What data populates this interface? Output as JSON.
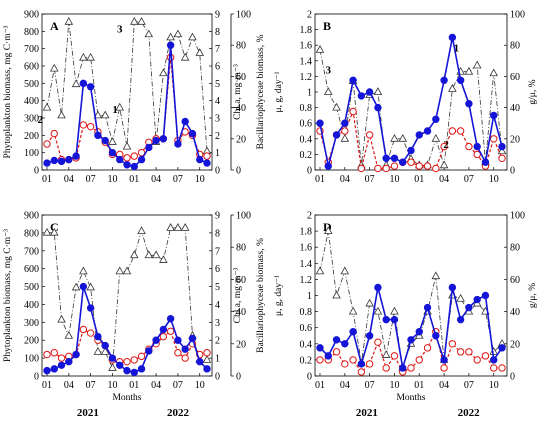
{
  "chart_data": [
    {
      "panel": "A",
      "type": "line",
      "x": [
        "01",
        "02",
        "03",
        "04",
        "05",
        "06",
        "07",
        "08",
        "09",
        "10",
        "11",
        "12",
        "01",
        "02",
        "03",
        "04",
        "05",
        "06",
        "07",
        "08",
        "09",
        "10",
        "11"
      ],
      "xticks": [
        "01",
        "04",
        "07",
        "10",
        "01",
        "04",
        "07",
        "10"
      ],
      "ylabel_left": "Phytoplankton biomass, mg C·m⁻³",
      "ylabel_right1": "Chl a, mg·m⁻³",
      "ylabel_right2": "Bacillariophyceae biomass, %",
      "ylim_left": [
        0,
        900
      ],
      "yticks_left": [
        "0",
        "100",
        "200",
        "300",
        "400",
        "500",
        "600",
        "700",
        "800",
        "900"
      ],
      "ylim_right1": [
        0,
        9
      ],
      "yticks_right1": [
        "0",
        "1",
        "2",
        "3",
        "4",
        "5",
        "6",
        "7",
        "8",
        "9"
      ],
      "ylim_right2": [
        0,
        100
      ],
      "yticks_right2": [
        "0",
        "20",
        "40",
        "60",
        "80",
        "100"
      ],
      "series_labels": [
        "1",
        "2",
        "3"
      ],
      "series": [
        {
          "label": "1",
          "axis": "left",
          "values": [
            40,
            55,
            50,
            60,
            80,
            500,
            480,
            200,
            170,
            100,
            60,
            30,
            20,
            60,
            130,
            170,
            180,
            720,
            150,
            280,
            210,
            60,
            40
          ]
        },
        {
          "label": "2",
          "axis": "right1",
          "values": [
            1.5,
            2.1,
            0.6,
            0.6,
            0.7,
            2.6,
            2.5,
            2.2,
            1.6,
            0.9,
            0.9,
            0.7,
            0.8,
            1.0,
            1.6,
            1.8,
            1.8,
            6.5,
            1.7,
            2.2,
            2.0,
            0.9,
            0.8
          ]
        },
        {
          "label": "3",
          "axis": "right2",
          "values": [
            40,
            65,
            35,
            95,
            55,
            72,
            72,
            35,
            35,
            18,
            40,
            15,
            95,
            95,
            87,
            18,
            62,
            85,
            87,
            72,
            85,
            75,
            12
          ]
        }
      ]
    },
    {
      "panel": "B",
      "type": "line",
      "x": [
        "01",
        "02",
        "03",
        "04",
        "05",
        "06",
        "07",
        "08",
        "09",
        "10",
        "11",
        "12",
        "01",
        "02",
        "03",
        "04",
        "05",
        "06",
        "07",
        "08",
        "09",
        "10",
        "11"
      ],
      "xticks": [
        "01",
        "04",
        "07",
        "10",
        "01",
        "04",
        "07",
        "10"
      ],
      "ylabel_left": "μ, g, day⁻¹",
      "ylabel_right": "g/μ, %",
      "ylim_left": [
        0,
        2
      ],
      "yticks_left": [
        "0",
        "0.2",
        "0.4",
        "0.6",
        "0.8",
        "1",
        "1.2",
        "1.4",
        "1.6",
        "1.8",
        "2"
      ],
      "ylim_right": [
        0,
        100
      ],
      "yticks_right": [
        "0",
        "20",
        "40",
        "60",
        "80",
        "100"
      ],
      "series_labels": [
        "1",
        "2",
        "3"
      ],
      "series": [
        {
          "label": "1",
          "axis": "left",
          "values": [
            0.6,
            0.05,
            0.45,
            0.6,
            1.15,
            0.95,
            1.0,
            0.8,
            0.15,
            0.15,
            0.1,
            0.25,
            0.45,
            0.5,
            0.65,
            1.15,
            1.7,
            1.15,
            0.85,
            0.3,
            0.1,
            0.7,
            0.3
          ]
        },
        {
          "label": "2",
          "axis": "left",
          "values": [
            0.5,
            0.1,
            0.45,
            0.5,
            0.75,
            0.02,
            0.45,
            0.02,
            0.02,
            0.05,
            0.1,
            0.1,
            0.05,
            0.05,
            0.02,
            0.3,
            0.5,
            0.5,
            0.3,
            0.2,
            0.05,
            0.4,
            0.15
          ]
        },
        {
          "label": "3",
          "axis": "right",
          "values": [
            77,
            50,
            40,
            20,
            57,
            3,
            48,
            50,
            3,
            20,
            20,
            7,
            3,
            3,
            20,
            3,
            52,
            63,
            63,
            67,
            5,
            62,
            12
          ]
        }
      ]
    },
    {
      "panel": "C",
      "type": "line",
      "x": [
        "01",
        "02",
        "03",
        "04",
        "05",
        "06",
        "07",
        "08",
        "09",
        "10",
        "11",
        "12",
        "01",
        "02",
        "03",
        "04",
        "05",
        "06",
        "07",
        "08",
        "09",
        "10",
        "11"
      ],
      "xticks": [
        "01",
        "04",
        "07",
        "10",
        "01",
        "04",
        "07",
        "10"
      ],
      "xlabel": "Months",
      "years": [
        "2021",
        "2022"
      ],
      "ylabel_left": "Phytoplankton biomass, mg C·m⁻³",
      "ylabel_right1": "Chl a, mg·m⁻³",
      "ylabel_right2": "Bacillariophyceae biomass, %",
      "ylim_left": [
        0,
        900
      ],
      "yticks_left": [
        "0",
        "100",
        "200",
        "300",
        "400",
        "500",
        "600",
        "700",
        "800",
        "900"
      ],
      "ylim_right1": [
        0,
        9
      ],
      "yticks_right1": [
        "0",
        "1",
        "2",
        "3",
        "4",
        "5",
        "6",
        "7",
        "8",
        "9"
      ],
      "ylim_right2": [
        0,
        100
      ],
      "yticks_right2": [
        "0",
        "20",
        "40",
        "60",
        "80",
        "100"
      ],
      "series": [
        {
          "label": "1",
          "axis": "left",
          "values": [
            30,
            40,
            60,
            80,
            120,
            500,
            380,
            220,
            170,
            100,
            60,
            30,
            20,
            40,
            140,
            200,
            260,
            320,
            200,
            150,
            210,
            80,
            40
          ]
        },
        {
          "label": "2",
          "axis": "right1",
          "values": [
            1.2,
            1.3,
            1.0,
            1.1,
            1.2,
            2.6,
            2.4,
            2.0,
            1.7,
            0.9,
            0.8,
            0.8,
            0.9,
            1.1,
            1.5,
            1.8,
            2.2,
            2.5,
            1.3,
            1.0,
            1.8,
            1.2,
            1.3
          ]
        },
        {
          "label": "3",
          "axis": "right2",
          "values": [
            89,
            89,
            35,
            25,
            55,
            65,
            55,
            15,
            15,
            5,
            65,
            65,
            75,
            90,
            75,
            75,
            72,
            92,
            92,
            92,
            25,
            10,
            10
          ]
        }
      ]
    },
    {
      "panel": "D",
      "type": "line",
      "x": [
        "01",
        "02",
        "03",
        "04",
        "05",
        "06",
        "07",
        "08",
        "09",
        "10",
        "11",
        "12",
        "01",
        "02",
        "03",
        "04",
        "05",
        "06",
        "07",
        "08",
        "09",
        "10",
        "11"
      ],
      "xticks": [
        "01",
        "04",
        "07",
        "10",
        "01",
        "04",
        "07",
        "10"
      ],
      "xlabel": "Months",
      "years": [
        "2021",
        "2022"
      ],
      "ylabel_left": "μ, g, day⁻¹",
      "ylabel_right": "g/μ, %",
      "ylim_left": [
        0,
        2
      ],
      "yticks_left": [
        "0",
        "0.2",
        "0.4",
        "0.6",
        "0.8",
        "1",
        "1.2",
        "1.4",
        "1.6",
        "1.8",
        "2"
      ],
      "ylim_right": [
        0,
        100
      ],
      "yticks_right": [
        "0",
        "20",
        "40",
        "60",
        "80",
        "100"
      ],
      "series": [
        {
          "label": "1",
          "axis": "left",
          "values": [
            0.35,
            0.25,
            0.45,
            0.4,
            0.55,
            0.15,
            0.5,
            1.1,
            0.7,
            0.7,
            0.1,
            0.45,
            0.55,
            0.85,
            0.5,
            0.2,
            1.1,
            0.7,
            0.85,
            0.95,
            1.0,
            0.2,
            0.35
          ]
        },
        {
          "label": "2",
          "axis": "left",
          "values": [
            0.2,
            0.2,
            0.3,
            0.15,
            0.2,
            0.05,
            0.15,
            0.42,
            0.1,
            0.25,
            0.05,
            0.1,
            0.2,
            0.35,
            0.55,
            0.1,
            0.4,
            0.3,
            0.3,
            0.2,
            0.25,
            0.1,
            0.1
          ]
        },
        {
          "label": "3",
          "axis": "right",
          "values": [
            65,
            90,
            50,
            65,
            40,
            8,
            45,
            40,
            13,
            40,
            5,
            20,
            25,
            40,
            62,
            10,
            50,
            48,
            40,
            45,
            40,
            15,
            20
          ]
        }
      ]
    }
  ],
  "colors": {
    "series1": "#1515d8",
    "series2": "#e01414",
    "series3": "#333333"
  }
}
